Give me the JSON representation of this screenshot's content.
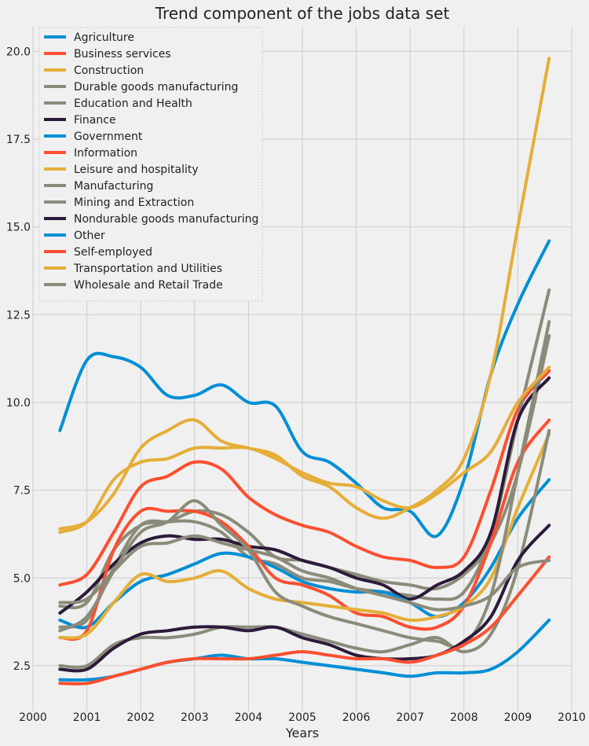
{
  "chart_data": {
    "type": "line",
    "title": "Trend component of the jobs data set",
    "xlabel": "Years",
    "ylabel": "",
    "xlim": [
      2000,
      2010
    ],
    "ylim": [
      1.2,
      20.7
    ],
    "x_ticks": [
      2000,
      2001,
      2002,
      2003,
      2004,
      2005,
      2006,
      2007,
      2008,
      2009,
      2010
    ],
    "y_ticks": [
      2.5,
      5.0,
      7.5,
      10.0,
      12.5,
      15.0,
      17.5,
      20.0
    ],
    "grid": true,
    "legend_position": "top-left",
    "x": [
      2000.5,
      2001.0,
      2001.5,
      2002.0,
      2002.5,
      2003.0,
      2003.5,
      2004.0,
      2004.5,
      2005.0,
      2005.5,
      2006.0,
      2006.5,
      2007.0,
      2007.5,
      2008.0,
      2008.5,
      2009.0,
      2009.58
    ],
    "series": [
      {
        "name": "Agriculture",
        "color": "#008fd5",
        "values": [
          9.2,
          11.2,
          11.3,
          11.0,
          10.2,
          10.2,
          10.5,
          10.0,
          9.9,
          8.6,
          8.3,
          7.7,
          7.0,
          6.9,
          6.2,
          7.8,
          10.8,
          12.8,
          14.6
        ]
      },
      {
        "name": "Business services",
        "color": "#fc4f30",
        "values": [
          4.8,
          5.1,
          6.3,
          7.6,
          7.9,
          8.3,
          8.1,
          7.3,
          6.8,
          6.5,
          6.3,
          5.9,
          5.6,
          5.5,
          5.3,
          5.6,
          7.5,
          9.8,
          10.9
        ]
      },
      {
        "name": "Construction",
        "color": "#e5ae38",
        "values": [
          6.4,
          6.6,
          7.4,
          8.7,
          9.2,
          9.5,
          8.9,
          8.7,
          8.5,
          7.9,
          7.6,
          7.0,
          6.7,
          7.0,
          7.5,
          8.4,
          10.8,
          15.0,
          19.8
        ]
      },
      {
        "name": "Durable goods manufacturing",
        "color": "#8b8b7a",
        "values": [
          3.6,
          3.8,
          5.3,
          6.5,
          6.6,
          6.6,
          6.3,
          5.6,
          5.4,
          5.0,
          4.9,
          4.7,
          4.6,
          4.5,
          4.4,
          4.6,
          6.2,
          9.5,
          13.2
        ]
      },
      {
        "name": "Education and Health",
        "color": "#8b8b7a",
        "values": [
          4.2,
          4.3,
          5.8,
          6.5,
          6.6,
          6.9,
          6.8,
          6.3,
          5.6,
          5.5,
          5.3,
          5.1,
          4.9,
          4.8,
          4.7,
          5.1,
          6.0,
          8.0,
          11.9
        ]
      },
      {
        "name": "Finance",
        "color": "#2d1a3a",
        "values": [
          4.0,
          4.6,
          5.4,
          6.0,
          6.2,
          6.1,
          6.1,
          5.9,
          5.8,
          5.5,
          5.3,
          5.0,
          4.8,
          4.4,
          4.8,
          5.2,
          6.3,
          9.5,
          10.7
        ]
      },
      {
        "name": "Government",
        "color": "#008fd5",
        "values": [
          3.8,
          3.6,
          4.3,
          4.9,
          5.1,
          5.4,
          5.7,
          5.6,
          5.3,
          4.9,
          4.7,
          4.6,
          4.6,
          4.3,
          3.9,
          4.3,
          5.3,
          6.7,
          7.8
        ]
      },
      {
        "name": "Information",
        "color": "#fc4f30",
        "values": [
          3.3,
          3.5,
          5.8,
          6.9,
          6.9,
          6.9,
          6.6,
          5.9,
          5.0,
          4.8,
          4.5,
          4.0,
          3.9,
          3.6,
          3.6,
          4.2,
          6.0,
          8.3,
          9.5
        ]
      },
      {
        "name": "Leisure and hospitality",
        "color": "#e5ae38",
        "values": [
          3.3,
          3.4,
          4.3,
          5.1,
          4.9,
          5.0,
          5.2,
          4.7,
          4.4,
          4.3,
          4.2,
          4.1,
          4.0,
          3.8,
          3.9,
          4.2,
          5.0,
          7.0,
          9.1
        ]
      },
      {
        "name": "Manufacturing",
        "color": "#8b8b7a",
        "values": [
          3.5,
          3.9,
          5.2,
          6.3,
          6.6,
          7.2,
          6.5,
          5.8,
          4.6,
          4.2,
          3.9,
          3.7,
          3.5,
          3.3,
          3.2,
          3.1,
          4.5,
          8.0,
          12.3
        ]
      },
      {
        "name": "Mining and Extraction",
        "color": "#8b8b7a",
        "values": [
          2.5,
          2.5,
          3.1,
          3.3,
          3.3,
          3.4,
          3.6,
          3.6,
          3.6,
          3.4,
          3.2,
          3.0,
          2.9,
          3.1,
          3.3,
          2.9,
          3.4,
          5.3,
          9.2
        ]
      },
      {
        "name": "Nondurable goods manufacturing",
        "color": "#2d1a3a",
        "values": [
          2.4,
          2.4,
          3.0,
          3.4,
          3.5,
          3.6,
          3.6,
          3.5,
          3.6,
          3.3,
          3.1,
          2.8,
          2.7,
          2.7,
          2.8,
          3.2,
          3.9,
          5.5,
          6.5
        ]
      },
      {
        "name": "Other",
        "color": "#008fd5",
        "values": [
          2.1,
          2.1,
          2.2,
          2.4,
          2.6,
          2.7,
          2.8,
          2.7,
          2.7,
          2.6,
          2.5,
          2.4,
          2.3,
          2.2,
          2.3,
          2.3,
          2.4,
          2.9,
          3.8
        ]
      },
      {
        "name": "Self-employed",
        "color": "#fc4f30",
        "values": [
          2.0,
          2.0,
          2.2,
          2.4,
          2.6,
          2.7,
          2.7,
          2.7,
          2.8,
          2.9,
          2.8,
          2.7,
          2.7,
          2.6,
          2.8,
          3.1,
          3.6,
          4.5,
          5.6
        ]
      },
      {
        "name": "Transportation and Utilities",
        "color": "#e5ae38",
        "values": [
          6.3,
          6.6,
          7.8,
          8.3,
          8.4,
          8.7,
          8.7,
          8.7,
          8.4,
          8.0,
          7.7,
          7.6,
          7.2,
          7.0,
          7.4,
          8.0,
          8.6,
          10.0,
          11.0
        ]
      },
      {
        "name": "Wholesale and Retail Trade",
        "color": "#8b8b7a",
        "values": [
          4.3,
          4.4,
          5.2,
          5.9,
          6.0,
          6.2,
          6.0,
          5.8,
          5.6,
          5.2,
          5.0,
          4.7,
          4.5,
          4.3,
          4.1,
          4.2,
          4.5,
          5.3,
          5.5
        ]
      }
    ]
  }
}
